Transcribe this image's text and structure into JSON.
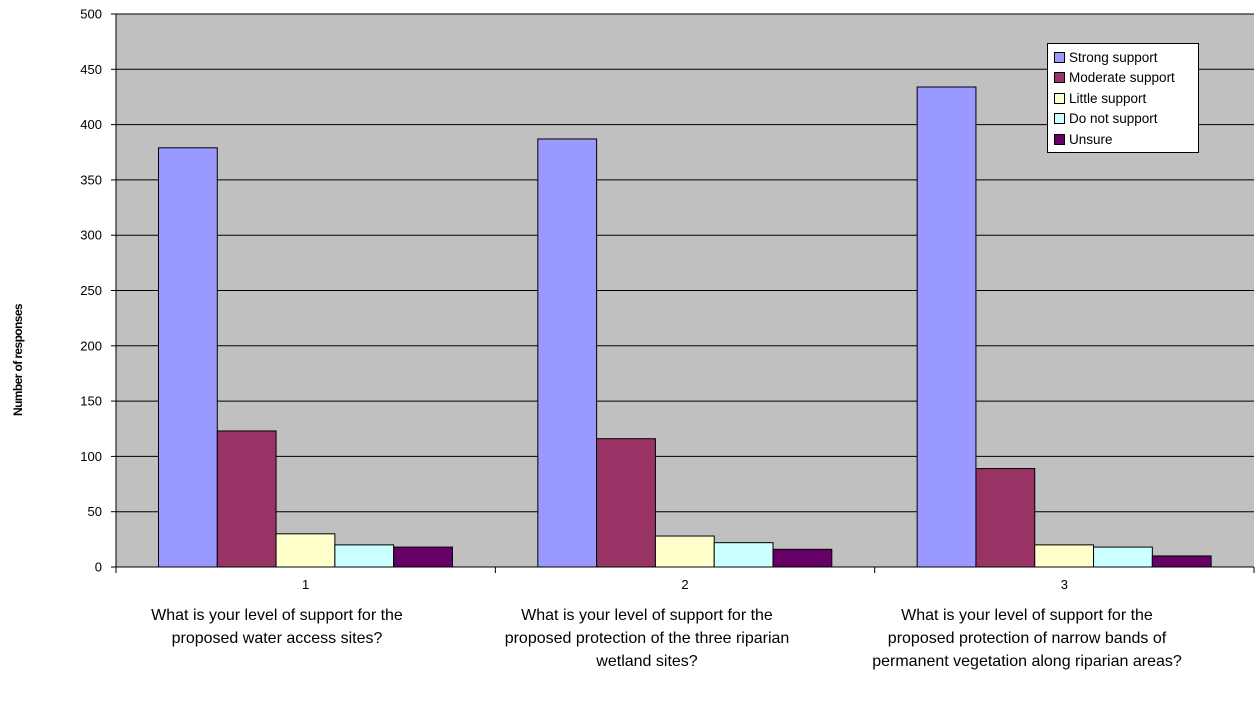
{
  "chart_data": {
    "type": "bar",
    "categories": [
      "1",
      "2",
      "3"
    ],
    "questions": [
      "What is your level of support for the proposed water access sites?",
      "What is your level of support for the proposed protection of the three riparian wetland sites?",
      "What is your level of support for the proposed protection of narrow bands of permanent vegetation along riparian areas?"
    ],
    "series": [
      {
        "name": "Strong support",
        "color": "#9999ff",
        "values": [
          379,
          387,
          434
        ]
      },
      {
        "name": "Moderate support",
        "color": "#993366",
        "values": [
          123,
          116,
          89
        ]
      },
      {
        "name": "Little support",
        "color": "#ffffcc",
        "values": [
          30,
          28,
          20
        ]
      },
      {
        "name": "Do not support",
        "color": "#ccffff",
        "values": [
          20,
          22,
          18
        ]
      },
      {
        "name": "Unsure",
        "color": "#660066",
        "values": [
          18,
          16,
          10
        ]
      }
    ],
    "ylabel": "Number of responses",
    "ylim": [
      0,
      500
    ],
    "yticks": [
      "0",
      "50",
      "100",
      "150",
      "200",
      "250",
      "300",
      "350",
      "400",
      "450",
      "500"
    ],
    "grid": true,
    "plot_background": "#c0c0c0",
    "legend_position": "top-right"
  }
}
